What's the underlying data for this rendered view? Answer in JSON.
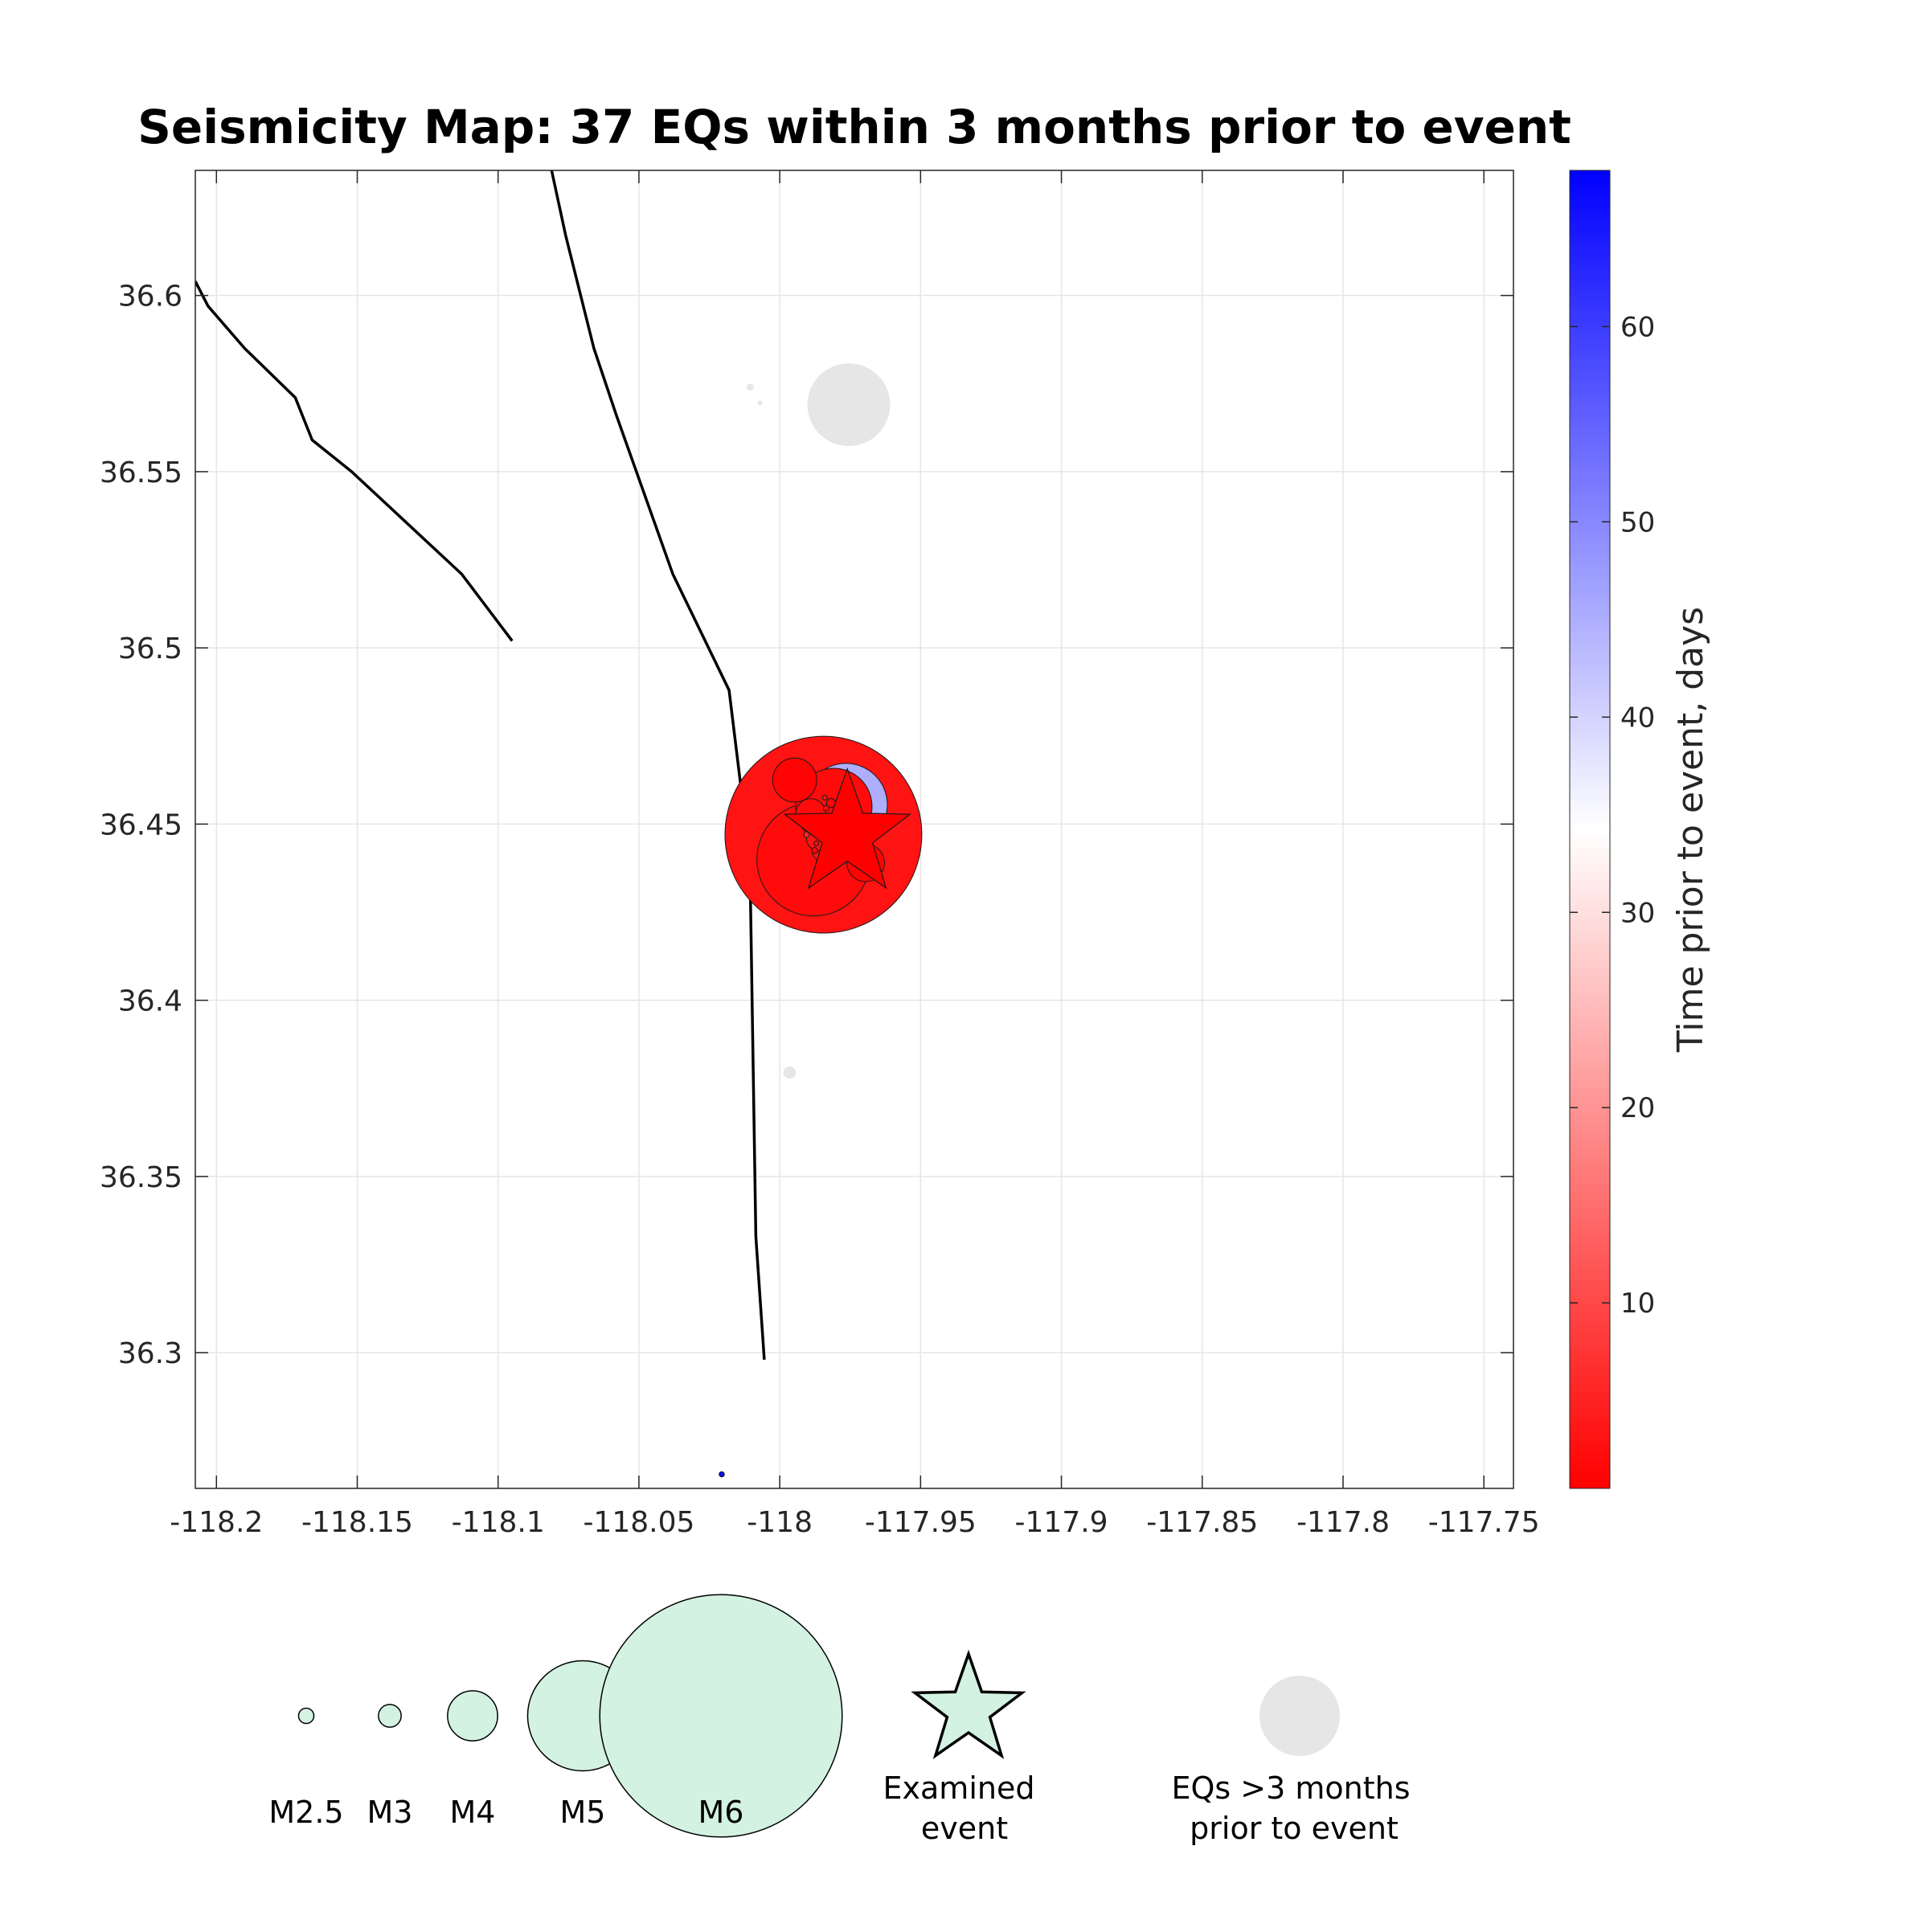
{
  "chart_data": {
    "type": "scatter",
    "title": "Seismicity Map: 37 EQs within 3 months prior to event",
    "xlabel": "",
    "ylabel": "",
    "xlim": [
      -118.2075,
      -117.7395
    ],
    "ylim": [
      36.2615,
      36.6355
    ],
    "x_ticks": [
      -118.2,
      -118.15,
      -118.1,
      -118.05,
      -118,
      -117.95,
      -117.9,
      -117.85,
      -117.8,
      -117.75
    ],
    "x_tick_labels": [
      "-118.2",
      "-118.15",
      "-118.1",
      "-118.05",
      "-118",
      "-117.95",
      "-117.9",
      "-117.85",
      "-117.8",
      "-117.75"
    ],
    "y_ticks": [
      36.3,
      36.35,
      36.4,
      36.45,
      36.5,
      36.55,
      36.6
    ],
    "y_tick_labels": [
      "36.3",
      "36.35",
      "36.4",
      "36.45",
      "36.5",
      "36.55",
      "36.6"
    ],
    "grid": true,
    "colorbar": {
      "label": "Time prior to event, days",
      "range": [
        0.5,
        68
      ],
      "ticks": [
        10,
        20,
        30,
        40,
        50,
        60
      ],
      "tick_labels": [
        "10",
        "20",
        "30",
        "40",
        "50",
        "60"
      ],
      "colors": [
        "#ff0000",
        "#ffffff",
        "#0000ff"
      ],
      "position": "right"
    },
    "faults": [
      [
        [
          -118.2075,
          36.604
        ],
        [
          -118.203,
          36.597
        ],
        [
          -118.19,
          36.585
        ],
        [
          -118.172,
          36.571
        ],
        [
          -118.166,
          36.559
        ],
        [
          -118.152,
          36.55
        ],
        [
          -118.113,
          36.521
        ],
        [
          -118.095,
          36.502
        ]
      ],
      [
        [
          -118.081,
          36.6355
        ],
        [
          -118.076,
          36.617
        ],
        [
          -118.066,
          36.585
        ],
        [
          -118.058,
          36.566
        ],
        [
          -118.038,
          36.521
        ],
        [
          -118.018,
          36.488
        ],
        [
          -118.0137,
          36.46
        ],
        [
          -118.0105,
          36.435
        ],
        [
          -118.0085,
          36.333
        ],
        [
          -118.0055,
          36.298
        ]
      ]
    ],
    "events": [
      {
        "lon": -117.9845,
        "lat": 36.447,
        "mag": 5.5,
        "days": 3
      },
      {
        "lon": -117.988,
        "lat": 36.44,
        "mag": 4.8,
        "days": 2
      },
      {
        "lon": -117.9765,
        "lat": 36.4555,
        "mag": 4.4,
        "days": 45
      },
      {
        "lon": -117.9808,
        "lat": 36.455,
        "mag": 4.3,
        "days": 2
      },
      {
        "lon": -117.9947,
        "lat": 36.4625,
        "mag": 3.6,
        "days": 1
      },
      {
        "lon": -117.9695,
        "lat": 36.439,
        "mag": 3.4,
        "days": 1
      },
      {
        "lon": -117.989,
        "lat": 36.453,
        "mag": 3.1,
        "days": 2
      },
      {
        "lon": -117.9838,
        "lat": 36.443,
        "mag": 3.0,
        "days": 4
      },
      {
        "lon": -117.986,
        "lat": 36.446,
        "mag": 2.9,
        "days": 3
      },
      {
        "lon": -117.9818,
        "lat": 36.456,
        "mag": 1.6,
        "days": 1
      },
      {
        "lon": -117.9785,
        "lat": 36.452,
        "mag": 1.5,
        "days": 2
      },
      {
        "lon": -117.983,
        "lat": 36.4485,
        "mag": 1.5,
        "days": 3
      },
      {
        "lon": -117.9805,
        "lat": 36.4465,
        "mag": 1.4,
        "days": 2
      },
      {
        "lon": -117.9745,
        "lat": 36.445,
        "mag": 1.3,
        "days": 5
      },
      {
        "lon": -117.9775,
        "lat": 36.4425,
        "mag": 1.3,
        "days": 1
      },
      {
        "lon": -117.9725,
        "lat": 36.4505,
        "mag": 1.2,
        "days": 2
      },
      {
        "lon": -117.985,
        "lat": 36.451,
        "mag": 1.2,
        "days": 4
      },
      {
        "lon": -117.9876,
        "lat": 36.4425,
        "mag": 1.1,
        "days": 1
      },
      {
        "lon": -117.982,
        "lat": 36.4395,
        "mag": 1.1,
        "days": 3
      },
      {
        "lon": -117.979,
        "lat": 36.449,
        "mag": 1.0,
        "days": 2
      },
      {
        "lon": -117.975,
        "lat": 36.4535,
        "mag": 1.0,
        "days": 1
      },
      {
        "lon": -117.9905,
        "lat": 36.447,
        "mag": 1.0,
        "days": 6
      },
      {
        "lon": -117.9835,
        "lat": 36.4545,
        "mag": 1.0,
        "days": 2
      },
      {
        "lon": -117.9765,
        "lat": 36.4478,
        "mag": 0.9,
        "days": 3
      },
      {
        "lon": -117.981,
        "lat": 36.444,
        "mag": 0.9,
        "days": 1
      },
      {
        "lon": -117.9735,
        "lat": 36.4415,
        "mag": 0.9,
        "days": 2
      },
      {
        "lon": -117.9888,
        "lat": 36.4505,
        "mag": 0.9,
        "days": 4
      },
      {
        "lon": -117.9792,
        "lat": 36.4415,
        "mag": 0.8,
        "days": 2
      },
      {
        "lon": -117.984,
        "lat": 36.4575,
        "mag": 0.8,
        "days": 3
      },
      {
        "lon": -117.9755,
        "lat": 36.4495,
        "mag": 0.8,
        "days": 1
      },
      {
        "lon": -117.987,
        "lat": 36.4445,
        "mag": 0.8,
        "days": 2
      },
      {
        "lon": -117.9802,
        "lat": 36.4525,
        "mag": 0.8,
        "days": 5
      },
      {
        "lon": -117.9828,
        "lat": 36.4502,
        "mag": 0.7,
        "days": 1
      },
      {
        "lon": -117.9778,
        "lat": 36.4455,
        "mag": 0.7,
        "days": 2
      },
      {
        "lon": -117.9845,
        "lat": 36.4455,
        "mag": 0.7,
        "days": 3
      },
      {
        "lon": -117.9728,
        "lat": 36.4465,
        "mag": 0.7,
        "days": 2
      },
      {
        "lon": -118.0206,
        "lat": 36.2655,
        "mag": 0.9,
        "days": 66
      }
    ],
    "older_events": [
      {
        "lon": -117.9755,
        "lat": 36.569,
        "mag": 4.4
      },
      {
        "lon": -117.979,
        "lat": 36.5745,
        "mag": 3.0
      },
      {
        "lon": -117.9725,
        "lat": 36.5725,
        "mag": 3.0
      },
      {
        "lon": -118.0105,
        "lat": 36.574,
        "mag": 1.3
      },
      {
        "lon": -118.007,
        "lat": 36.5695,
        "mag": 0.8
      },
      {
        "lon": -117.9965,
        "lat": 36.3795,
        "mag": 2.0
      },
      {
        "lon": -118.0065,
        "lat": 36.445,
        "mag": 1.1
      }
    ],
    "examined_event": {
      "lon": -117.976,
      "lat": 36.447
    },
    "legend": {
      "position": "bottom",
      "magnitudes": [
        {
          "label": "M2.5",
          "mag": 2.5
        },
        {
          "label": "M3",
          "mag": 3
        },
        {
          "label": "M4",
          "mag": 4
        },
        {
          "label": "M5",
          "mag": 5
        },
        {
          "label": "M6",
          "mag": 6
        }
      ],
      "examined_label_1": "Examined",
      "examined_label_2": "event",
      "older_label_1": "EQs >3 months",
      "older_label_2": "prior to event",
      "fill_color": "#d3f2e1",
      "older_color": "#e6e6e6"
    }
  }
}
